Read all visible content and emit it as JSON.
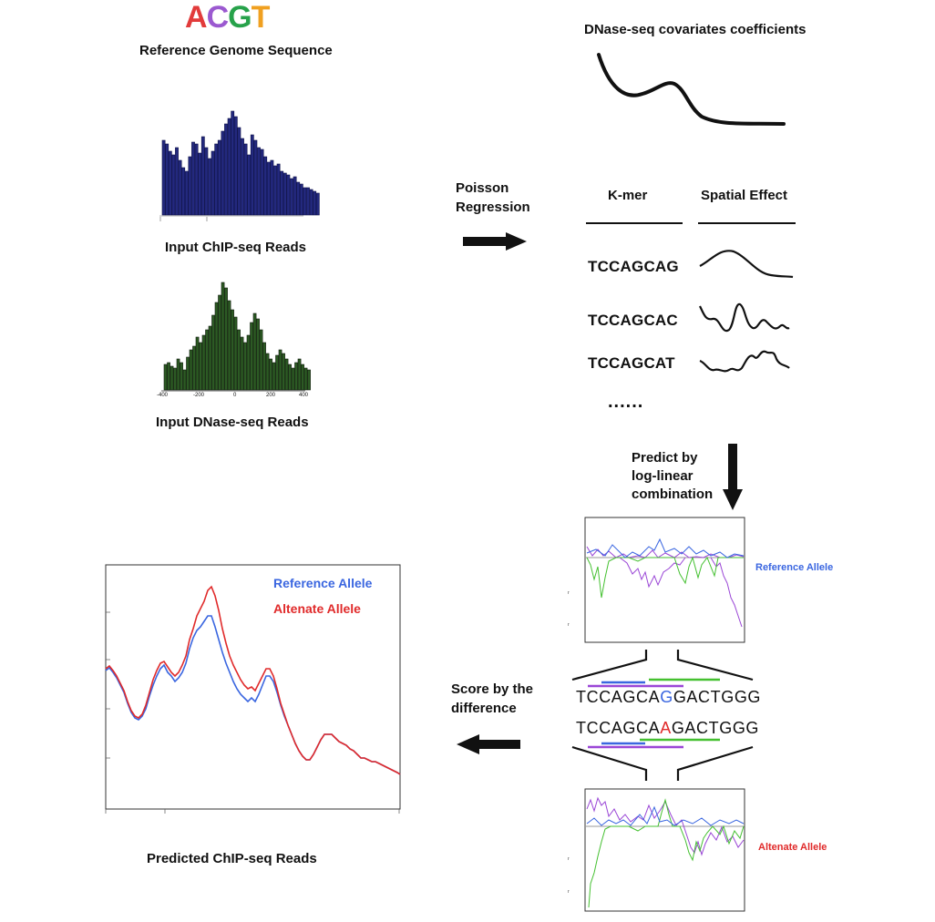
{
  "logo": {
    "letters": [
      "A",
      "C",
      "G",
      "T"
    ],
    "colors": [
      "#e23b3b",
      "#9b59d0",
      "#27a24a",
      "#f0a020"
    ]
  },
  "labels": {
    "reference_genome": "Reference Genome Sequence",
    "chip_input": "Input ChIP-seq Reads",
    "dnase_input": "Input DNase-seq Reads",
    "dnase_covariates": "DNase-seq covariates coefficients",
    "poisson_1": "Poisson",
    "poisson_2": "Regression",
    "kmer_header": "K-mer",
    "spatial_header": "Spatial Effect",
    "kmer_1": "TCCAGCAG",
    "kmer_2": "TCCAGCAC",
    "kmer_3": "TCCAGCAT",
    "ellipsis": "......",
    "predict_1": "Predict by",
    "predict_2": "log-linear",
    "predict_3": "combination",
    "reference_allele": "Reference Allele",
    "alternate_allele": "Altenate Allele",
    "score_1": "Score by the",
    "score_2": "difference",
    "ref_seq_pre": "TCCAGCA",
    "ref_seq_var": "G",
    "ref_seq_post": "GACTGGG",
    "alt_seq_pre": "TCCAGCA",
    "alt_seq_var": "A",
    "alt_seq_post": "GACTGGG",
    "predicted": "Predicted ChIP-seq Reads"
  },
  "dnase_axis_ticks": [
    "-400",
    "-200",
    "0",
    "200",
    "400"
  ],
  "colors": {
    "blue": "#3a66e0",
    "red": "#e02a2a",
    "green": "#44c030",
    "purple": "#9a46d6",
    "navy": "#202a8a",
    "darkgreen": "#2d5a22"
  }
}
